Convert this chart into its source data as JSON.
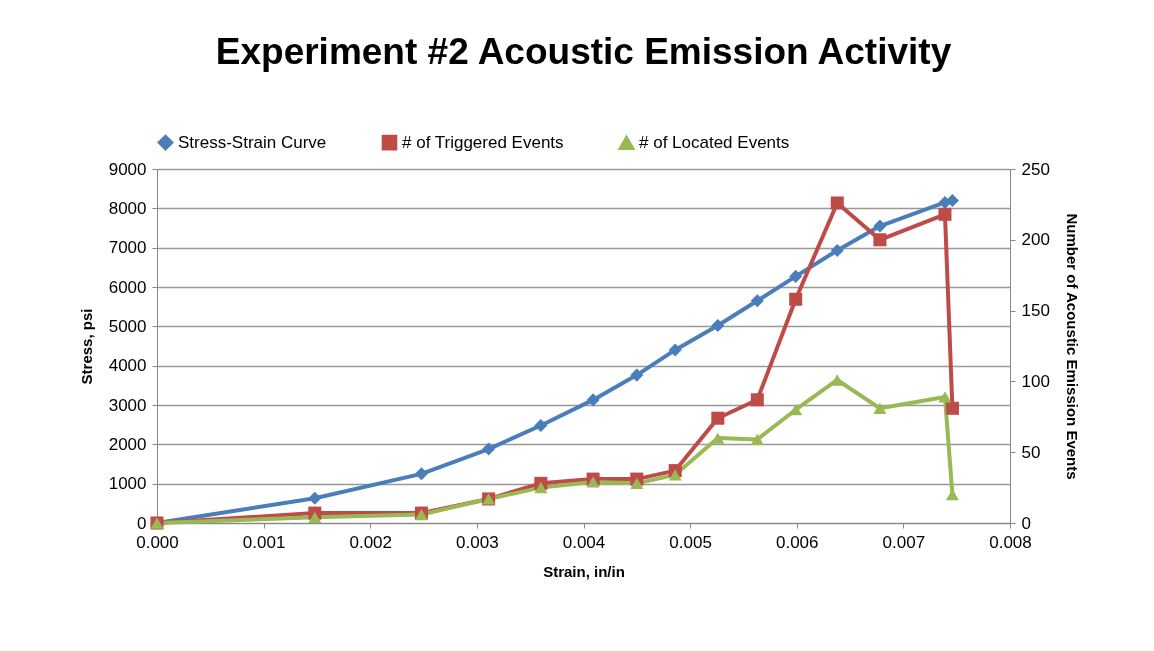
{
  "chart_data": {
    "type": "line",
    "title": "Experiment #2 Acoustic Emission Activity",
    "xlabel": "Strain, in/in",
    "ylabel": "Stress, psi",
    "y2label": "Number of Acoustic Emission Events",
    "x": [
      0,
      0.00148,
      0.00248,
      0.00311,
      0.0036,
      0.00409,
      0.0045,
      0.00486,
      0.00526,
      0.00563,
      0.00599,
      0.00638,
      0.00678,
      0.00739,
      0.00746
    ],
    "series": [
      {
        "name": "Stress-Strain Curve",
        "color": "#4a7ebb",
        "marker": "diamond",
        "values": [
          0,
          630,
          1250,
          1880,
          2480,
          3130,
          3760,
          4400,
          5020,
          5650,
          6270,
          6930,
          7550,
          8150,
          8200
        ]
      },
      {
        "name": "# of Triggered Events",
        "color": "#be4b48",
        "marker": "square",
        "axis": "y2",
        "values": [
          0,
          7,
          7,
          17,
          28,
          31,
          31,
          37,
          74,
          87,
          158,
          226,
          200,
          218,
          81
        ]
      },
      {
        "name": "# of Located Events",
        "color": "#98b954",
        "marker": "triangle",
        "axis": "y2",
        "values": [
          0,
          4,
          6,
          17,
          25,
          29,
          28,
          34,
          60,
          59,
          80,
          101,
          81,
          89,
          20
        ]
      }
    ],
    "xlim": [
      0,
      0.008
    ],
    "xticks": [
      {
        "value": 0,
        "label": "0.000"
      },
      {
        "value": 0.001,
        "label": "0.001"
      },
      {
        "value": 0.002,
        "label": "0.002"
      },
      {
        "value": 0.003,
        "label": "0.003"
      },
      {
        "value": 0.004,
        "label": "0.004"
      },
      {
        "value": 0.005,
        "label": "0.005"
      },
      {
        "value": 0.006,
        "label": "0.006"
      },
      {
        "value": 0.007,
        "label": "0.007"
      },
      {
        "value": 0.008,
        "label": "0.008"
      }
    ],
    "ylim": [
      0,
      9000
    ],
    "yticks": [
      0,
      1000,
      2000,
      3000,
      4000,
      5000,
      6000,
      7000,
      8000,
      9000
    ],
    "y2lim": [
      0,
      250
    ],
    "y2ticks": [
      0,
      50,
      100,
      150,
      200,
      250
    ],
    "grid": "y",
    "legend": "top",
    "line_style": "solid"
  }
}
